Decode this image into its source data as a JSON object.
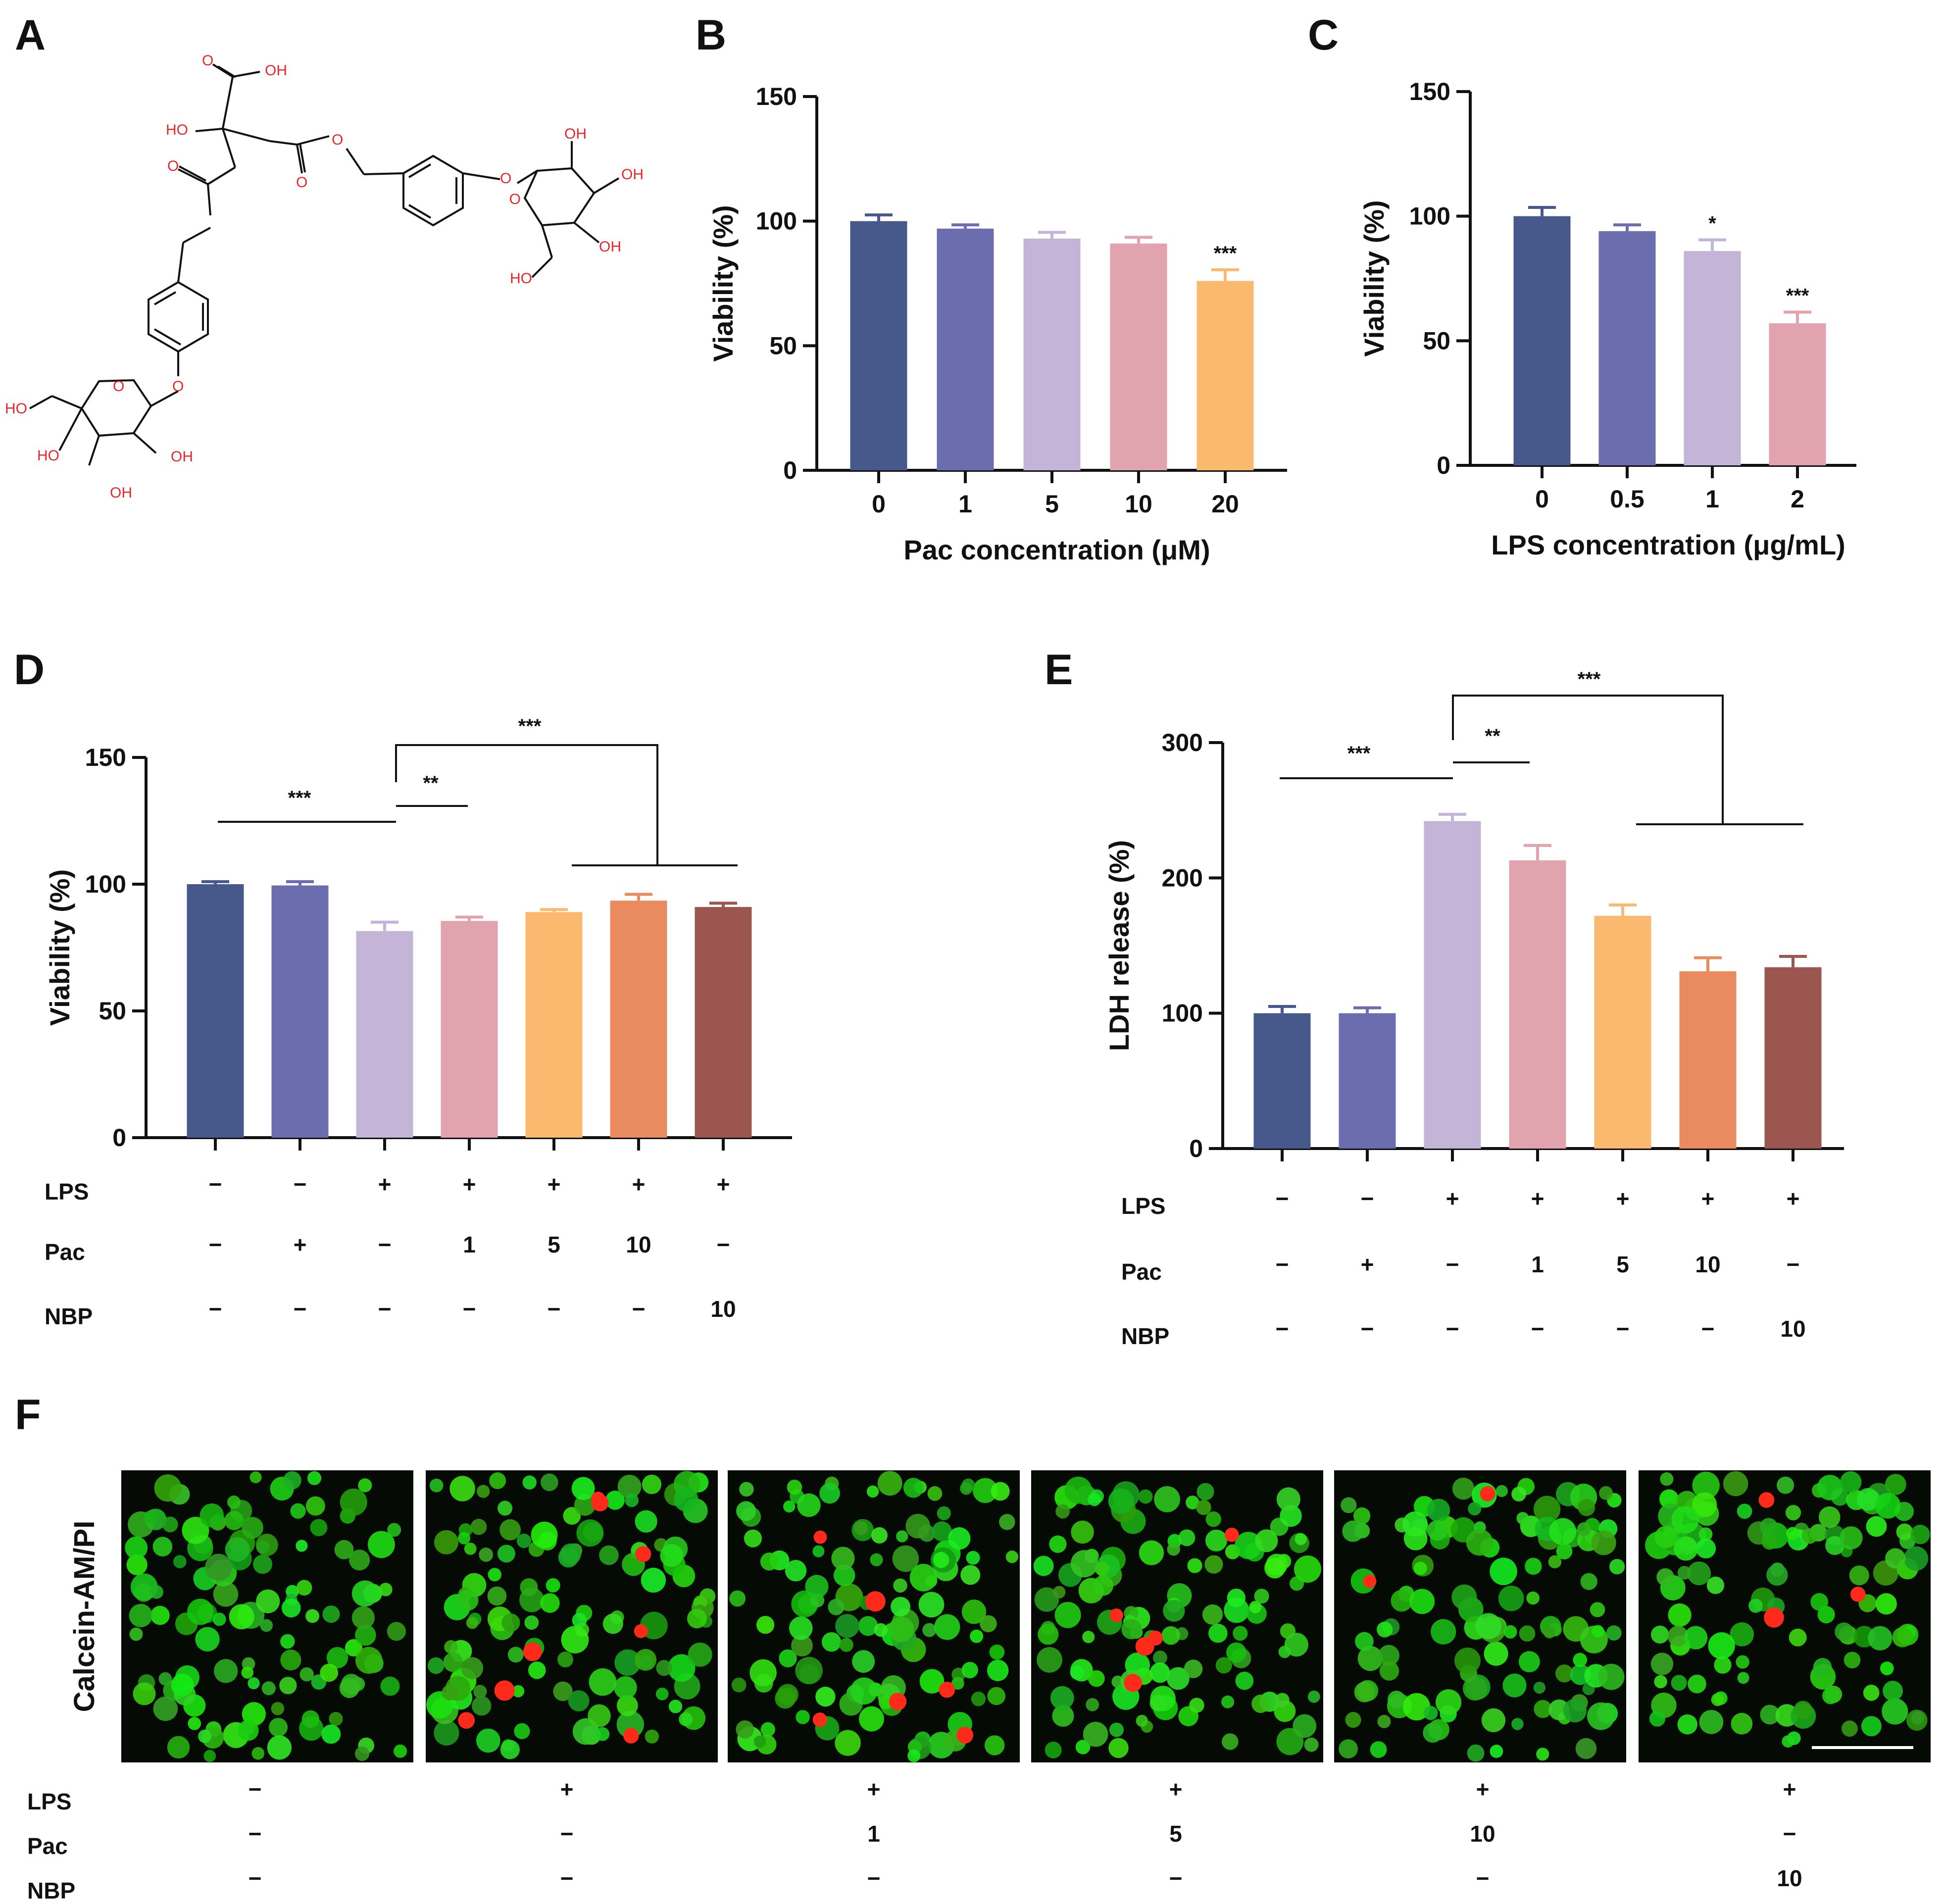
{
  "panels": {
    "A": "A",
    "B": "B",
    "C": "C",
    "D": "D",
    "E": "E",
    "F": "F"
  },
  "colors": {
    "navy": "#47598a",
    "periwinkle": "#6b6dae",
    "lavender": "#c3b4d8",
    "pink": "#e1a3ae",
    "peach": "#fbb970",
    "orange": "#e98b5e",
    "brown": "#9b574f",
    "axis": "#111111",
    "chem_red": "#e3262b"
  },
  "structure": {
    "labels": [
      "OH",
      "HO",
      "O",
      "O",
      "O",
      "O",
      "OH",
      "OH",
      "HO",
      "OH",
      "O",
      "O",
      "HO",
      "HO",
      "OH",
      "OH",
      "O",
      "O"
    ]
  },
  "chart_data": [
    {
      "panel": "B",
      "type": "bar",
      "categories": [
        "0",
        "1",
        "5",
        "10",
        "20"
      ],
      "values": [
        100,
        97,
        93,
        91,
        76
      ],
      "errors": [
        2.5,
        1.5,
        2.5,
        2.5,
        4.5
      ],
      "significance": [
        "",
        "",
        "",
        "",
        "***"
      ],
      "ylabel": "Viability (%)",
      "xlabel": "Pac concentration (μM)",
      "ylim": [
        0,
        150
      ],
      "yticks": [
        "0",
        "50",
        "100",
        "150"
      ],
      "bar_colors": [
        "navy",
        "periwinkle",
        "lavender",
        "pink",
        "peach"
      ]
    },
    {
      "panel": "C",
      "type": "bar",
      "categories": [
        "0",
        "0.5",
        "1",
        "2"
      ],
      "values": [
        100,
        94,
        86,
        57
      ],
      "errors": [
        3.5,
        2.5,
        4.5,
        4.5
      ],
      "significance": [
        "",
        "",
        "*",
        "***"
      ],
      "ylabel": "Viability (%)",
      "xlabel": "LPS concentration (μg/mL)",
      "ylim": [
        0,
        150
      ],
      "yticks": [
        "0",
        "50",
        "100",
        "150"
      ],
      "bar_colors": [
        "navy",
        "periwinkle",
        "lavender",
        "pink"
      ]
    },
    {
      "panel": "D",
      "type": "bar",
      "values": [
        100,
        99.5,
        81.5,
        85.5,
        89,
        93.5,
        91
      ],
      "errors": [
        1,
        1.5,
        3.5,
        1.5,
        1,
        2.5,
        1.5
      ],
      "ylabel": "Viability (%)",
      "ylim": [
        0,
        150
      ],
      "yticks": [
        "0",
        "50",
        "100",
        "150"
      ],
      "bar_colors": [
        "navy",
        "periwinkle",
        "lavender",
        "pink",
        "peach",
        "orange",
        "brown"
      ],
      "conditions": {
        "row_labels": [
          "LPS",
          "Pac",
          "NBP"
        ],
        "LPS": [
          "−",
          "−",
          "+",
          "+",
          "+",
          "+",
          "+"
        ],
        "Pac": [
          "−",
          "+",
          "−",
          "1",
          "5",
          "10",
          "−"
        ],
        "NBP": [
          "−",
          "−",
          "−",
          "−",
          "−",
          "−",
          "10"
        ]
      },
      "brackets": [
        "***",
        "**",
        "***"
      ]
    },
    {
      "panel": "E",
      "type": "bar",
      "values": [
        100,
        100,
        242,
        213,
        172,
        131,
        134
      ],
      "errors": [
        5,
        4,
        5,
        11,
        8,
        10,
        8
      ],
      "ylabel": "LDH release (%)",
      "ylim": [
        0,
        300
      ],
      "yticks": [
        "0",
        "100",
        "200",
        "300"
      ],
      "bar_colors": [
        "navy",
        "periwinkle",
        "lavender",
        "pink",
        "peach",
        "orange",
        "brown"
      ],
      "conditions": {
        "row_labels": [
          "LPS",
          "Pac",
          "NBP"
        ],
        "LPS": [
          "−",
          "−",
          "+",
          "+",
          "+",
          "+",
          "+"
        ],
        "Pac": [
          "−",
          "+",
          "−",
          "1",
          "5",
          "10",
          "−"
        ],
        "NBP": [
          "−",
          "−",
          "−",
          "−",
          "−",
          "−",
          "10"
        ]
      },
      "brackets": [
        "***",
        "**",
        "***"
      ]
    }
  ],
  "fluorescence": {
    "ylabel": "Calcein-AM/PI",
    "row_labels": [
      "LPS",
      "Pac",
      "NBP"
    ],
    "LPS": [
      "−",
      "+",
      "+",
      "+",
      "+",
      "+"
    ],
    "Pac": [
      "−",
      "−",
      "1",
      "5",
      "10",
      "−"
    ],
    "NBP": [
      "−",
      "−",
      "−",
      "−",
      "−",
      "10"
    ]
  }
}
